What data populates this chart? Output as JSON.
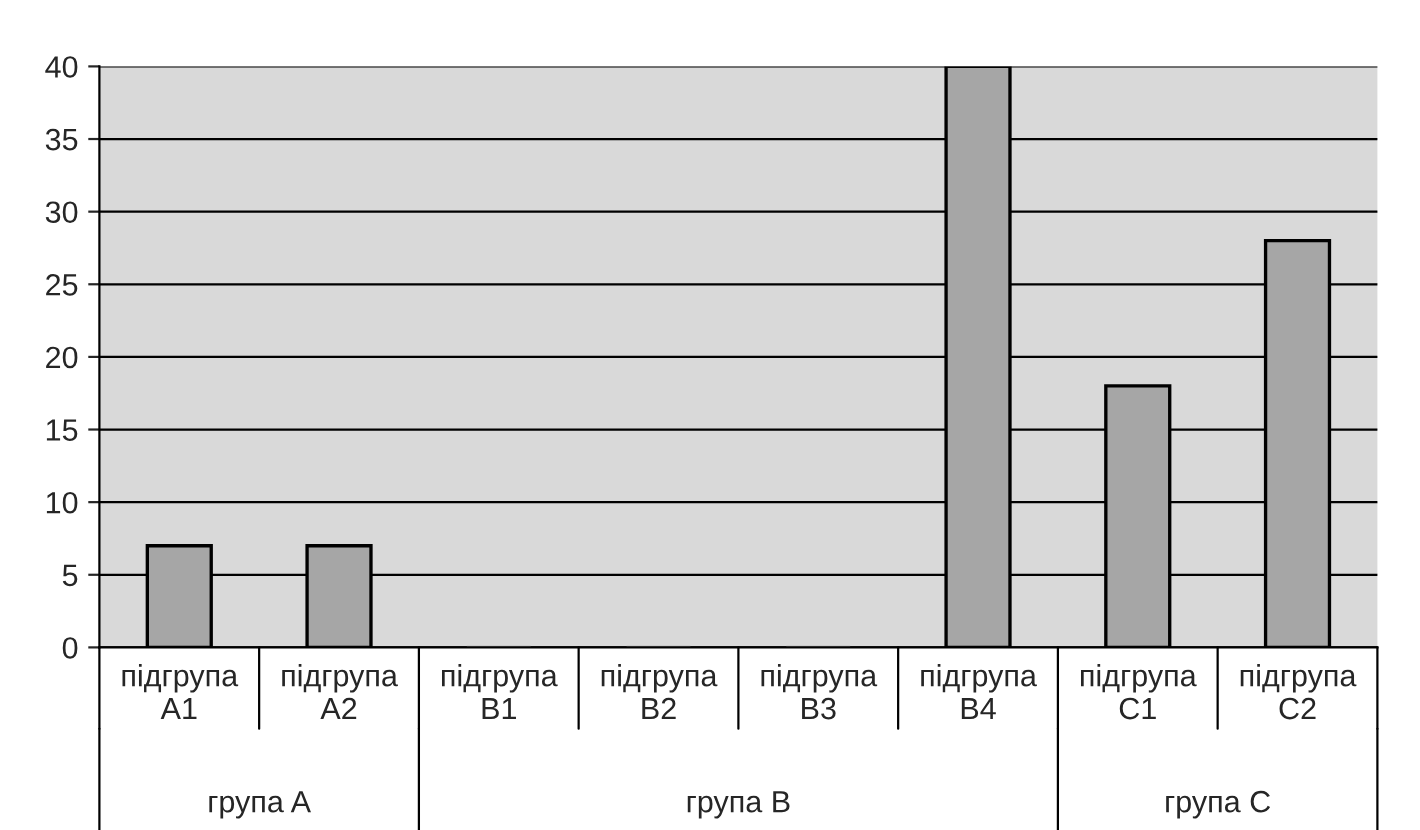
{
  "chart_data": {
    "type": "bar",
    "categories": [
      "підгрупа A1",
      "підгрупа A2",
      "підгрупа B1",
      "підгрупа B2",
      "підгрупа B3",
      "підгрупа B4",
      "підгрупа C1",
      "підгрупа C2"
    ],
    "values": [
      7,
      7,
      0,
      0,
      0,
      40,
      18,
      28
    ],
    "color": "#a6a6a6",
    "ylim": [
      0,
      40
    ],
    "yticks": [
      0,
      5,
      10,
      15,
      20,
      25,
      30,
      35,
      40
    ],
    "grid": "y",
    "annotations": [
      "група A",
      "група B",
      "група C"
    ]
  }
}
